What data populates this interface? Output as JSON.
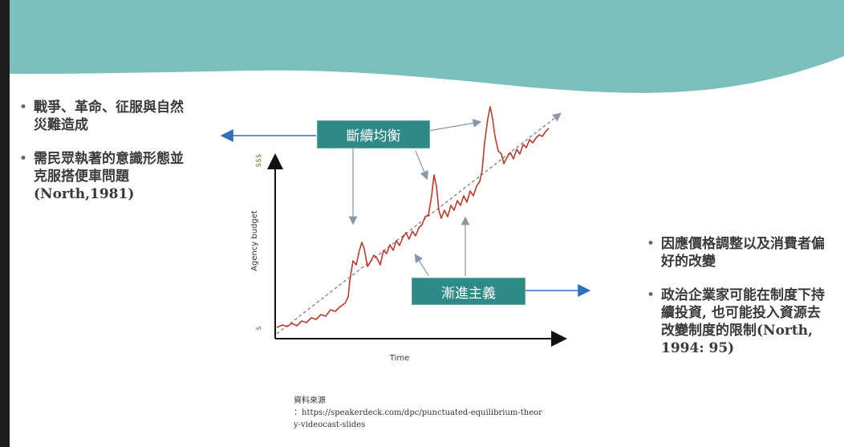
{
  "left_bullets": [
    "戰爭、革命、征服與自然災難造成",
    "需民眾執著的意識形態並克服搭便車問題(North,1981)"
  ],
  "right_bullets": [
    "因應價格調整以及消費者偏好的改變",
    "政治企業家可能在制度下持續投資, 也可能投入資源去改變制度的限制(North, 1994: 95)"
  ],
  "diagram": {
    "punctuated_label": "斷續均衡",
    "incremental_label": "漸進主義",
    "xlabel": "Time",
    "ylabel": "Agency budget",
    "y_top_tick": "$$$",
    "y_bottom_tick": "$"
  },
  "source": {
    "line1": "資料來源",
    "line2": "：https://speakerdeck.com/dpc/punctuated-equilibrium-theor",
    "line3": "y-videocast-slides"
  },
  "colors": {
    "header_teal": "#7bbfbc",
    "box_teal": "#2e8a86",
    "arrow_blue": "#2f6fc0",
    "series_red": "#c0392b",
    "tick_green": "#5a8a3a"
  }
}
